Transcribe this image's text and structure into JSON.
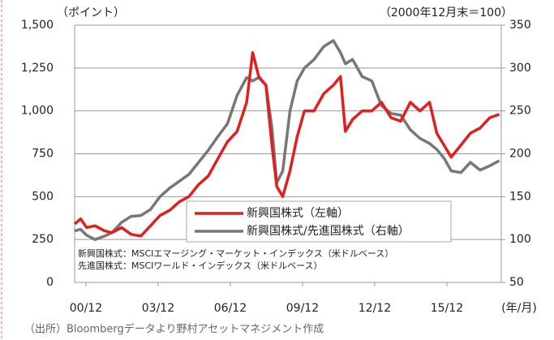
{
  "chart_data": {
    "type": "line",
    "left_axis_label": "（ポイント）",
    "right_axis_label": "（2000年12月末＝100）",
    "x_axis_label": "(年/月)",
    "notes": [
      "新興国株式：MSCIエマージング・マーケット・インデックス（米ドルベース）",
      "先進国株式：MSCIワールド・インデックス（米ドルベース）"
    ],
    "source": "（出所）Bloombergデータより野村アセットマネジメント作成",
    "x": [
      2000.45,
      2000.7,
      2000.95,
      2001.3,
      2001.7,
      2002.0,
      2002.4,
      2002.8,
      2003.2,
      2003.6,
      2004.0,
      2004.4,
      2004.8,
      2005.2,
      2005.6,
      2006.0,
      2006.4,
      2006.8,
      2007.2,
      2007.6,
      2007.85,
      2008.1,
      2008.4,
      2008.65,
      2008.85,
      2009.1,
      2009.4,
      2009.7,
      2010.0,
      2010.4,
      2010.8,
      2011.2,
      2011.5,
      2011.7,
      2012.0,
      2012.4,
      2012.8,
      2013.2,
      2013.6,
      2014.0,
      2014.4,
      2014.8,
      2015.2,
      2015.5,
      2015.8,
      2016.1,
      2016.5,
      2016.9,
      2017.3,
      2017.7,
      2018.1
    ],
    "series": [
      {
        "name": "新興国株式（左軸）",
        "color": "#e0201e",
        "values": [
          340,
          370,
          320,
          330,
          300,
          290,
          320,
          280,
          270,
          330,
          390,
          420,
          470,
          500,
          570,
          620,
          720,
          820,
          880,
          1050,
          1340,
          1200,
          1150,
          800,
          560,
          500,
          650,
          850,
          1000,
          1000,
          1100,
          1150,
          1200,
          880,
          950,
          1000,
          1000,
          1050,
          960,
          940,
          1050,
          1000,
          1050,
          870,
          800,
          730,
          800,
          870,
          900,
          960,
          980
        ]
      },
      {
        "name": "新興国株式/先進国株式（右軸）",
        "color": "#777777",
        "axis": "y2",
        "values": [
          110,
          112,
          105,
          100,
          104,
          108,
          120,
          127,
          128,
          135,
          150,
          160,
          168,
          176,
          190,
          204,
          220,
          235,
          268,
          289,
          285,
          289,
          280,
          230,
          166,
          180,
          250,
          285,
          300,
          310,
          325,
          332,
          318,
          305,
          310,
          290,
          285,
          256,
          247,
          245,
          228,
          218,
          212,
          205,
          195,
          180,
          178,
          190,
          181,
          186,
          192
        ]
      }
    ],
    "xlim": [
      2000.45,
      2018.18
    ],
    "xticks": [
      {
        "value": 2000.92,
        "label": "00/12"
      },
      {
        "value": 2003.92,
        "label": "03/12"
      },
      {
        "value": 2006.92,
        "label": "06/12"
      },
      {
        "value": 2009.92,
        "label": "09/12"
      },
      {
        "value": 2012.92,
        "label": "12/12"
      },
      {
        "value": 2015.92,
        "label": "15/12"
      }
    ],
    "ylim": [
      0,
      1500
    ],
    "yticks": [
      0,
      250,
      500,
      750,
      {
        "value": 1000,
        "label": "1,000"
      },
      {
        "value": 1250,
        "label": "1,250"
      },
      {
        "value": 1500,
        "label": "1,500"
      }
    ],
    "y2lim": [
      50,
      350
    ],
    "y2ticks": [
      50,
      100,
      150,
      200,
      250,
      300,
      350
    ],
    "grid": true
  }
}
